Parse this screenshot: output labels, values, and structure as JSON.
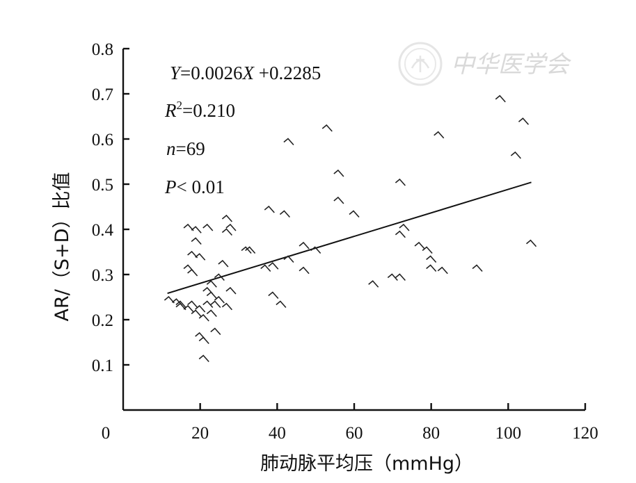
{
  "chart_data": {
    "type": "scatter",
    "title": "",
    "xlabel": "肺动脉平均压（mmHg）",
    "ylabel": "AR/（S+D）比值",
    "xlim": [
      0,
      120
    ],
    "ylim": [
      0,
      0.8
    ],
    "x_ticks": [
      "0",
      "20",
      "40",
      "60",
      "80",
      "100",
      "120"
    ],
    "y_ticks": [
      "0.1",
      "0.2",
      "0.3",
      "0.4",
      "0.5",
      "0.6",
      "0.7",
      "0.8"
    ],
    "grid": false,
    "annotations": {
      "equation": {
        "y": "Y",
        "eq1": "=0.0026",
        "x": "X",
        "eq2": " +0.2285"
      },
      "r2": {
        "r": "R",
        "sup": "2",
        "rest": "=0.210"
      },
      "n": {
        "n": "n",
        "rest": "=69"
      },
      "p": {
        "p": "P",
        "rest": "< 0.01"
      }
    },
    "fit_line": {
      "slope": 0.0026,
      "intercept": 0.2285,
      "x_range": [
        11.5,
        106
      ]
    },
    "points": [
      [
        12,
        0.24
      ],
      [
        14,
        0.235
      ],
      [
        15,
        0.23
      ],
      [
        17,
        0.4
      ],
      [
        19,
        0.395
      ],
      [
        22,
        0.4
      ],
      [
        18,
        0.34
      ],
      [
        20,
        0.335
      ],
      [
        17,
        0.31
      ],
      [
        18,
        0.3
      ],
      [
        17,
        0.22
      ],
      [
        18,
        0.23
      ],
      [
        19,
        0.21
      ],
      [
        20,
        0.22
      ],
      [
        21,
        0.2
      ],
      [
        20,
        0.16
      ],
      [
        21,
        0.15
      ],
      [
        24,
        0.17
      ],
      [
        21,
        0.11
      ],
      [
        19,
        0.37
      ],
      [
        22,
        0.26
      ],
      [
        23,
        0.25
      ],
      [
        22,
        0.23
      ],
      [
        23,
        0.21
      ],
      [
        23,
        0.275
      ],
      [
        25,
        0.24
      ],
      [
        25,
        0.29
      ],
      [
        24,
        0.23
      ],
      [
        27,
        0.42
      ],
      [
        28,
        0.4
      ],
      [
        27,
        0.39
      ],
      [
        28,
        0.26
      ],
      [
        27,
        0.225
      ],
      [
        32,
        0.35
      ],
      [
        33,
        0.35
      ],
      [
        37,
        0.31
      ],
      [
        38,
        0.44
      ],
      [
        39,
        0.315
      ],
      [
        39,
        0.25
      ],
      [
        41,
        0.23
      ],
      [
        42,
        0.43
      ],
      [
        43,
        0.59
      ],
      [
        43,
        0.33
      ],
      [
        47,
        0.36
      ],
      [
        47,
        0.305
      ],
      [
        50,
        0.35
      ],
      [
        53,
        0.62
      ],
      [
        56,
        0.46
      ],
      [
        56,
        0.52
      ],
      [
        60,
        0.43
      ],
      [
        65,
        0.275
      ],
      [
        70,
        0.29
      ],
      [
        72,
        0.29
      ],
      [
        72,
        0.5
      ],
      [
        72,
        0.385
      ],
      [
        73,
        0.4
      ],
      [
        77,
        0.36
      ],
      [
        79,
        0.35
      ],
      [
        80,
        0.33
      ],
      [
        80,
        0.31
      ],
      [
        82,
        0.605
      ],
      [
        83,
        0.305
      ],
      [
        92,
        0.31
      ],
      [
        98,
        0.685
      ],
      [
        102,
        0.56
      ],
      [
        104,
        0.635
      ],
      [
        106,
        0.365
      ],
      [
        15,
        0.225
      ],
      [
        26,
        0.32
      ]
    ]
  },
  "watermark": {
    "text": "中华医学会"
  }
}
